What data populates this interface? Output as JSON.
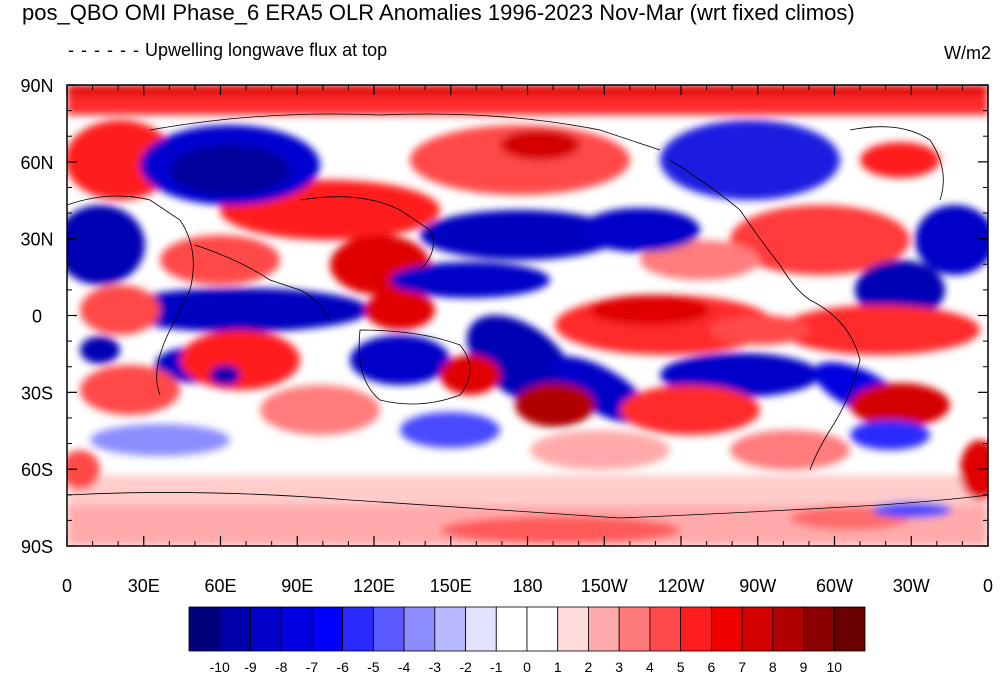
{
  "title": "pos_QBO OMI Phase_6 ERA5 OLR Anomalies 1996-2023 Nov-Mar (wrt fixed climos)",
  "subtitle": "Upwelling longwave flux at top",
  "units": "W/m2",
  "chart_data": {
    "type": "heatmap",
    "projection": "cylindrical equidistant, centered on 180",
    "x_ticks": [
      "0",
      "30E",
      "60E",
      "90E",
      "120E",
      "150E",
      "180",
      "150W",
      "120W",
      "90W",
      "60W",
      "30W",
      "0"
    ],
    "y_ticks": [
      "90N",
      "60N",
      "30N",
      "0",
      "30S",
      "60S",
      "90S"
    ],
    "colorbar": {
      "labels": [
        "-10",
        "-9",
        "-8",
        "-7",
        "-6",
        "-5",
        "-4",
        "-3",
        "-2",
        "-1",
        "0",
        "1",
        "2",
        "3",
        "4",
        "5",
        "6",
        "7",
        "8",
        "9",
        "10"
      ],
      "colors": [
        "#00007a",
        "#0000a8",
        "#0000c8",
        "#0000e0",
        "#0000ff",
        "#2a2aff",
        "#5a5aff",
        "#8c8cff",
        "#b8b8ff",
        "#e2e2ff",
        "#ffffff",
        "#ffffff",
        "#ffdcdc",
        "#ffaaaa",
        "#ff7b7b",
        "#ff4a4a",
        "#ff1e1e",
        "#f00000",
        "#d40000",
        "#b00000",
        "#8a0000",
        "#6a0000"
      ]
    }
  }
}
